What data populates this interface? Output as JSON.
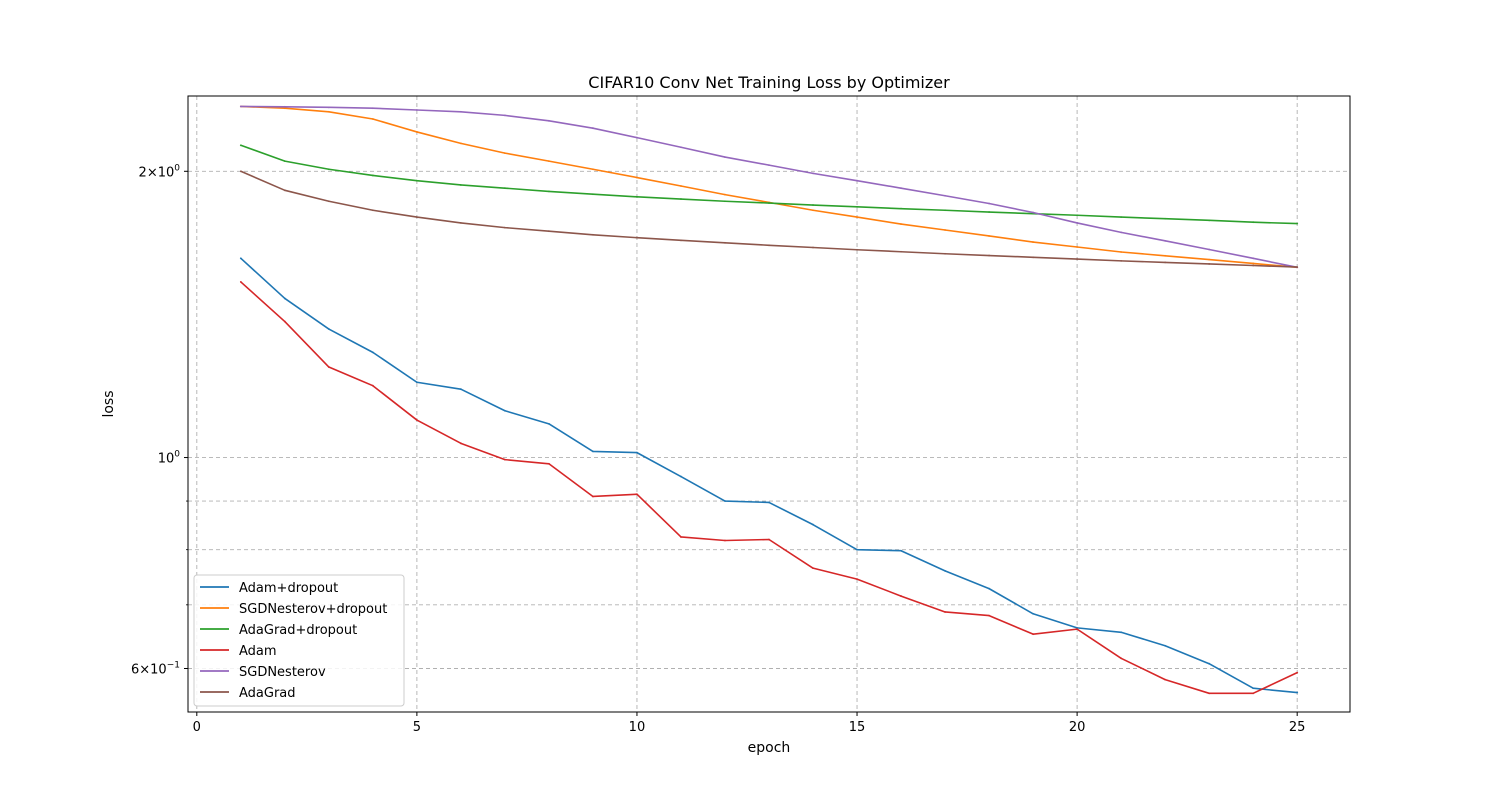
{
  "chart_data": {
    "type": "line",
    "title": "CIFAR10 Conv Net Training Loss by Optimizer",
    "xlabel": "epoch",
    "ylabel": "loss",
    "xlim": [
      -0.2,
      26.2
    ],
    "ylim": [
      0.54,
      2.4
    ],
    "yscale": "log",
    "grid": true,
    "legend_position": "lower-left",
    "x_ticks": [
      0,
      5,
      10,
      15,
      20,
      25
    ],
    "y_ticks": [
      {
        "value": 2.0,
        "base": "2×10",
        "exp": "0"
      },
      {
        "value": 1.0,
        "base": "10",
        "exp": "0"
      },
      {
        "value": 0.6,
        "base": "6×10",
        "exp": "−1"
      }
    ],
    "y_minor_gridlines": [
      0.9,
      0.8,
      0.7
    ],
    "x": [
      1,
      2,
      3,
      4,
      5,
      6,
      7,
      8,
      9,
      10,
      11,
      12,
      13,
      14,
      15,
      16,
      17,
      18,
      19,
      20,
      21,
      22,
      23,
      24,
      25
    ],
    "series": [
      {
        "name": "Adam+dropout",
        "color": "#1f77b4",
        "values": [
          1.62,
          1.47,
          1.365,
          1.29,
          1.2,
          1.18,
          1.12,
          1.085,
          1.015,
          1.012,
          0.955,
          0.9,
          0.897,
          0.85,
          0.8,
          0.798,
          0.76,
          0.728,
          0.685,
          0.662,
          0.655,
          0.634,
          0.607,
          0.572,
          0.566
        ]
      },
      {
        "name": "SGDNesterov+dropout",
        "color": "#ff7f0e",
        "values": [
          2.34,
          2.33,
          2.31,
          2.27,
          2.2,
          2.14,
          2.09,
          2.05,
          2.01,
          1.97,
          1.93,
          1.89,
          1.855,
          1.82,
          1.79,
          1.76,
          1.735,
          1.71,
          1.685,
          1.665,
          1.645,
          1.63,
          1.615,
          1.6,
          1.585
        ]
      },
      {
        "name": "AdaGrad+dropout",
        "color": "#2ca02c",
        "values": [
          2.13,
          2.05,
          2.01,
          1.98,
          1.955,
          1.935,
          1.92,
          1.905,
          1.892,
          1.88,
          1.87,
          1.86,
          1.852,
          1.843,
          1.835,
          1.827,
          1.82,
          1.812,
          1.805,
          1.798,
          1.79,
          1.783,
          1.776,
          1.768,
          1.762
        ]
      },
      {
        "name": "Adam",
        "color": "#d62728",
        "values": [
          1.53,
          1.39,
          1.245,
          1.19,
          1.095,
          1.035,
          0.995,
          0.985,
          0.91,
          0.915,
          0.825,
          0.818,
          0.82,
          0.765,
          0.745,
          0.715,
          0.688,
          0.682,
          0.652,
          0.66,
          0.615,
          0.584,
          0.565,
          0.565,
          0.594
        ]
      },
      {
        "name": "SGDNesterov",
        "color": "#9467bd",
        "values": [
          2.34,
          2.338,
          2.335,
          2.33,
          2.32,
          2.31,
          2.29,
          2.26,
          2.22,
          2.17,
          2.12,
          2.07,
          2.03,
          1.99,
          1.955,
          1.92,
          1.885,
          1.85,
          1.81,
          1.765,
          1.725,
          1.69,
          1.655,
          1.62,
          1.585
        ]
      },
      {
        "name": "AdaGrad",
        "color": "#8c564b",
        "values": [
          2.0,
          1.91,
          1.86,
          1.82,
          1.79,
          1.765,
          1.745,
          1.73,
          1.715,
          1.703,
          1.692,
          1.682,
          1.672,
          1.663,
          1.654,
          1.646,
          1.638,
          1.631,
          1.624,
          1.617,
          1.61,
          1.604,
          1.598,
          1.592,
          1.586
        ]
      }
    ]
  }
}
